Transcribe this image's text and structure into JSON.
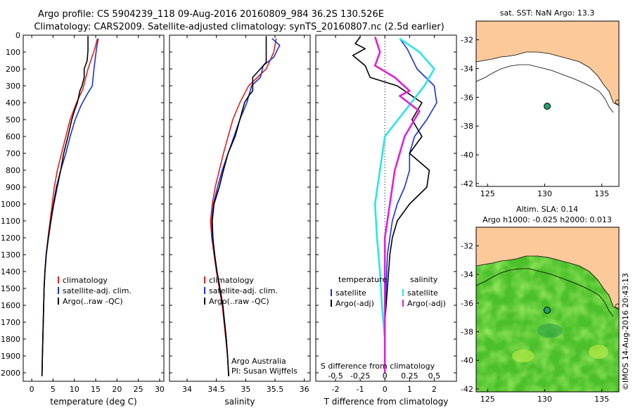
{
  "title_line1": "Argo profile: CS 5904239_118 09-Aug-2016 20160809_984 36.2S 130.526E",
  "title_line2": "Climatology: CARS2009. Satellite-adjusted climatology: synTS_20160807.nc (2.5d earlier)",
  "side_credit": "©IMOS 14-Aug-2016 20:43:13",
  "colors": {
    "red": "#e02020",
    "blue": "#1a2ee0",
    "black": "#000000",
    "cyan": "#28e6e6",
    "magenta": "#e020d8",
    "land": "#fcc99a"
  },
  "chart_data": [
    {
      "type": "line",
      "id": "temperature",
      "xlabel": "temperature (deg C)",
      "ylabel": "",
      "xlim": [
        -2,
        31
      ],
      "ylim": [
        2050,
        0
      ],
      "xticks": [
        0,
        5,
        10,
        15,
        20,
        25,
        30
      ],
      "yticks": [
        0,
        100,
        200,
        300,
        400,
        500,
        600,
        700,
        800,
        900,
        1000,
        1100,
        1200,
        1300,
        1400,
        1500,
        1600,
        1700,
        1800,
        1900,
        2000
      ],
      "legend": [
        "climatology",
        "satellite-adj. clim.",
        "Argo(..raw -QC)"
      ],
      "series": [
        {
          "name": "climatology",
          "color": "red",
          "points": [
            [
              15.4,
              20
            ],
            [
              14.8,
              80
            ],
            [
              13.2,
              200
            ],
            [
              12.0,
              320
            ],
            [
              10.5,
              400
            ],
            [
              9.0,
              500
            ],
            [
              8.0,
              600
            ],
            [
              7.0,
              700
            ],
            [
              6.0,
              800
            ],
            [
              5.3,
              900
            ],
            [
              4.8,
              1000
            ],
            [
              4.3,
              1100
            ],
            [
              3.8,
              1200
            ],
            [
              3.4,
              1300
            ],
            [
              3.1,
              1400
            ],
            [
              2.9,
              1500
            ],
            [
              2.8,
              1600
            ],
            [
              2.7,
              1700
            ],
            [
              2.6,
              1800
            ],
            [
              2.5,
              1900
            ],
            [
              2.4,
              2020
            ]
          ]
        },
        {
          "name": "satellite-adj. clim.",
          "color": "blue",
          "points": [
            [
              15.6,
              20
            ],
            [
              15.2,
              80
            ],
            [
              14.6,
              200
            ],
            [
              14.2,
              300
            ],
            [
              13.0,
              350
            ],
            [
              11.5,
              420
            ],
            [
              10.2,
              500
            ],
            [
              9.0,
              600
            ],
            [
              8.0,
              700
            ],
            [
              6.8,
              800
            ],
            [
              6.0,
              900
            ],
            [
              5.2,
              1000
            ],
            [
              4.5,
              1100
            ],
            [
              3.9,
              1200
            ],
            [
              3.4,
              1300
            ],
            [
              3.1,
              1400
            ],
            [
              2.9,
              1500
            ],
            [
              2.8,
              1600
            ],
            [
              2.7,
              1700
            ],
            [
              2.6,
              1800
            ],
            [
              2.5,
              1900
            ],
            [
              2.4,
              2020
            ]
          ]
        },
        {
          "name": "Argo(..raw -QC)",
          "color": "black",
          "points": [
            [
              13.2,
              5
            ],
            [
              13.2,
              90
            ],
            [
              13.0,
              150
            ],
            [
              12.3,
              200
            ],
            [
              12.3,
              250
            ],
            [
              11.8,
              300
            ],
            [
              11.3,
              330
            ],
            [
              10.7,
              400
            ],
            [
              10.0,
              450
            ],
            [
              9.4,
              500
            ],
            [
              8.5,
              600
            ],
            [
              7.5,
              700
            ],
            [
              6.8,
              800
            ],
            [
              5.8,
              900
            ],
            [
              5.1,
              1000
            ],
            [
              4.5,
              1100
            ],
            [
              3.9,
              1200
            ],
            [
              3.4,
              1300
            ],
            [
              3.1,
              1400
            ],
            [
              2.9,
              1500
            ],
            [
              2.8,
              1600
            ],
            [
              2.7,
              1700
            ],
            [
              2.6,
              1800
            ],
            [
              2.5,
              1900
            ],
            [
              2.4,
              2020
            ]
          ]
        }
      ]
    },
    {
      "type": "line",
      "id": "salinity",
      "xlabel": "salinity",
      "ylabel": "",
      "xlim": [
        33.7,
        36.1
      ],
      "ylim": [
        2050,
        0
      ],
      "xticks": [
        34,
        34.5,
        35,
        35.5,
        36
      ],
      "legend": [
        "climatology",
        "satellite-adj. clim.",
        "Argo(..raw -QC)"
      ],
      "annotation": [
        "Argo Australia",
        "PI: Susan Wijffels"
      ],
      "series": [
        {
          "name": "climatology",
          "color": "red",
          "points": [
            [
              35.52,
              20
            ],
            [
              35.48,
              100
            ],
            [
              35.35,
              200
            ],
            [
              35.05,
              300
            ],
            [
              34.9,
              400
            ],
            [
              34.78,
              500
            ],
            [
              34.7,
              600
            ],
            [
              34.62,
              700
            ],
            [
              34.55,
              800
            ],
            [
              34.48,
              900
            ],
            [
              34.43,
              1000
            ],
            [
              34.4,
              1100
            ],
            [
              34.42,
              1200
            ],
            [
              34.46,
              1300
            ],
            [
              34.5,
              1400
            ],
            [
              34.55,
              1500
            ],
            [
              34.6,
              1600
            ],
            [
              34.63,
              1700
            ],
            [
              34.66,
              1800
            ],
            [
              34.69,
              1900
            ],
            [
              34.71,
              2020
            ]
          ]
        },
        {
          "name": "satellite-adj. clim.",
          "color": "blue",
          "points": [
            [
              35.45,
              20
            ],
            [
              35.58,
              60
            ],
            [
              35.48,
              130
            ],
            [
              35.3,
              180
            ],
            [
              35.25,
              250
            ],
            [
              35.1,
              300
            ],
            [
              35.02,
              400
            ],
            [
              34.9,
              500
            ],
            [
              34.8,
              600
            ],
            [
              34.7,
              700
            ],
            [
              34.6,
              800
            ],
            [
              34.52,
              900
            ],
            [
              34.45,
              1000
            ],
            [
              34.42,
              1100
            ],
            [
              34.43,
              1200
            ],
            [
              34.47,
              1300
            ],
            [
              34.51,
              1400
            ],
            [
              34.56,
              1500
            ],
            [
              34.61,
              1600
            ],
            [
              34.64,
              1700
            ],
            [
              34.67,
              1800
            ],
            [
              34.69,
              1900
            ],
            [
              34.71,
              2020
            ]
          ]
        },
        {
          "name": "Argo(..raw -QC)",
          "color": "black",
          "points": [
            [
              35.35,
              5
            ],
            [
              35.35,
              160
            ],
            [
              35.25,
              200
            ],
            [
              35.12,
              250
            ],
            [
              35.12,
              330
            ],
            [
              35.05,
              360
            ],
            [
              34.98,
              400
            ],
            [
              34.9,
              500
            ],
            [
              34.82,
              600
            ],
            [
              34.7,
              700
            ],
            [
              34.62,
              800
            ],
            [
              34.55,
              900
            ],
            [
              34.46,
              1000
            ],
            [
              34.43,
              1100
            ],
            [
              34.44,
              1200
            ],
            [
              34.47,
              1300
            ],
            [
              34.51,
              1400
            ],
            [
              34.56,
              1500
            ],
            [
              34.61,
              1600
            ],
            [
              34.64,
              1700
            ],
            [
              34.67,
              1800
            ],
            [
              34.69,
              1900
            ],
            [
              34.71,
              2020
            ]
          ]
        }
      ]
    },
    {
      "type": "line",
      "id": "difference",
      "xlabel": "T difference from climatology",
      "x2label": "S difference from climatology",
      "xlim": [
        -2.8,
        2.9
      ],
      "ylim": [
        2050,
        0
      ],
      "xticks": [
        -2,
        -1,
        0,
        1,
        2
      ],
      "sticks": [
        -0.5,
        -0.25,
        0,
        0.25,
        0.5
      ],
      "legend_temperature": {
        "title": "temperature",
        "items": [
          "satellite",
          "Argo(-adj)"
        ]
      },
      "legend_salinity": {
        "title": "salinity",
        "items": [
          "satellite",
          "Argo(-adj)"
        ]
      },
      "series": [
        {
          "name": "temperature satellite",
          "color": "blue",
          "points": [
            [
              0.6,
              20
            ],
            [
              0.9,
              80
            ],
            [
              1.3,
              200
            ],
            [
              2.0,
              300
            ],
            [
              2.1,
              400
            ],
            [
              1.7,
              500
            ],
            [
              1.2,
              600
            ],
            [
              1.0,
              700
            ],
            [
              1.0,
              800
            ],
            [
              0.8,
              900
            ],
            [
              0.5,
              1000
            ],
            [
              0.3,
              1100
            ],
            [
              0.2,
              1200
            ],
            [
              0.1,
              1300
            ],
            [
              0.05,
              1500
            ],
            [
              0.0,
              1700
            ],
            [
              0.0,
              2000
            ]
          ]
        },
        {
          "name": "temperature Argo(-adj)",
          "color": "black",
          "points": [
            [
              -1.0,
              10
            ],
            [
              -1.2,
              50
            ],
            [
              -0.8,
              80
            ],
            [
              -1.3,
              120
            ],
            [
              -0.8,
              180
            ],
            [
              -0.6,
              250
            ],
            [
              0.5,
              300
            ],
            [
              1.5,
              400
            ],
            [
              1.1,
              500
            ],
            [
              1.5,
              600
            ],
            [
              1.0,
              700
            ],
            [
              1.8,
              800
            ],
            [
              1.7,
              900
            ],
            [
              1.0,
              1000
            ],
            [
              0.5,
              1100
            ],
            [
              0.3,
              1200
            ],
            [
              0.2,
              1300
            ],
            [
              0.1,
              1500
            ],
            [
              0.0,
              1700
            ],
            [
              0.0,
              2000
            ]
          ]
        },
        {
          "name": "salinity satellite",
          "color": "cyan",
          "points": [
            [
              0.15,
              20
            ],
            [
              0.35,
              100
            ],
            [
              0.5,
              200
            ],
            [
              0.4,
              300
            ],
            [
              0.2,
              450
            ],
            [
              0.0,
              600
            ],
            [
              -0.05,
              800
            ],
            [
              -0.1,
              1000
            ],
            [
              -0.08,
              1200
            ],
            [
              -0.05,
              1400
            ],
            [
              -0.03,
              1600
            ],
            [
              0.0,
              1800
            ],
            [
              0.0,
              2000
            ]
          ]
        },
        {
          "name": "salinity Argo(-adj)",
          "color": "magenta",
          "points": [
            [
              -0.1,
              10
            ],
            [
              -0.05,
              100
            ],
            [
              -0.1,
              180
            ],
            [
              0.1,
              250
            ],
            [
              0.25,
              330
            ],
            [
              0.15,
              360
            ],
            [
              0.35,
              450
            ],
            [
              0.2,
              600
            ],
            [
              0.15,
              700
            ],
            [
              0.1,
              800
            ],
            [
              0.05,
              1000
            ],
            [
              0.0,
              1200
            ],
            [
              0.0,
              2000
            ]
          ]
        }
      ]
    },
    {
      "type": "map",
      "id": "sst-map",
      "title": "sat. SST: NaN Argo: 13.3",
      "xlim": [
        124,
        136.5
      ],
      "ylim": [
        -42.2,
        -30.7
      ],
      "xticks": [
        125,
        130,
        135
      ],
      "yticks": [
        -32,
        -34,
        -36,
        -38,
        -40,
        -42
      ],
      "argo_position": [
        130.526,
        -36.2
      ]
    },
    {
      "type": "map",
      "id": "sla-map",
      "title": "Altim. SLA: 0.14",
      "subtitle": "Argo h1000: -0.025 h2000: 0.013",
      "xlim": [
        124,
        136.5
      ],
      "ylim": [
        -42.2,
        -30.7
      ],
      "xticks": [
        125,
        130,
        135
      ],
      "yticks": [
        -32,
        -34,
        -36,
        -38,
        -40,
        -42
      ],
      "argo_position": [
        130.526,
        -36.2
      ]
    }
  ]
}
